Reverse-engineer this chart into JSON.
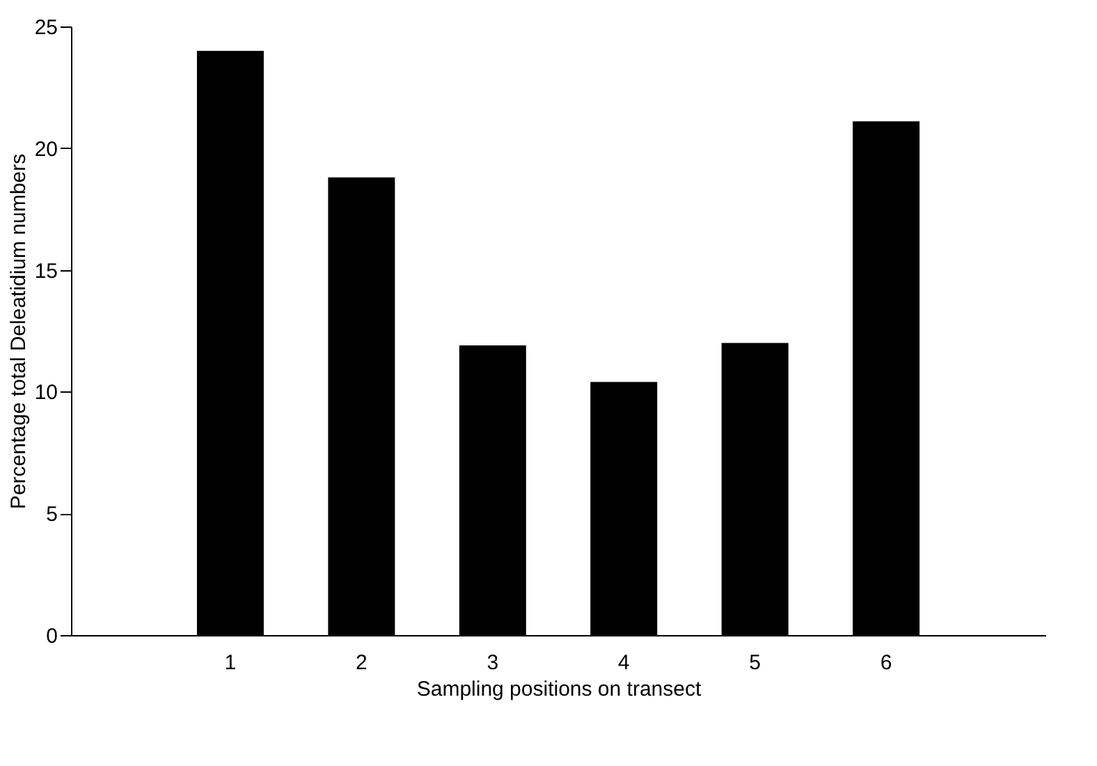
{
  "chart_data": {
    "type": "bar",
    "xlabel": "Sampling positions on transect",
    "ylabel": "Percentage total Deleatidium numbers",
    "categories": [
      "1",
      "2",
      "3",
      "4",
      "5",
      "6"
    ],
    "values": [
      24.0,
      18.8,
      11.9,
      10.4,
      12.0,
      21.1
    ],
    "color": "#000000",
    "ylim": [
      0,
      25
    ],
    "yticks": [
      0,
      5,
      10,
      15,
      20,
      25
    ],
    "grid": false
  }
}
